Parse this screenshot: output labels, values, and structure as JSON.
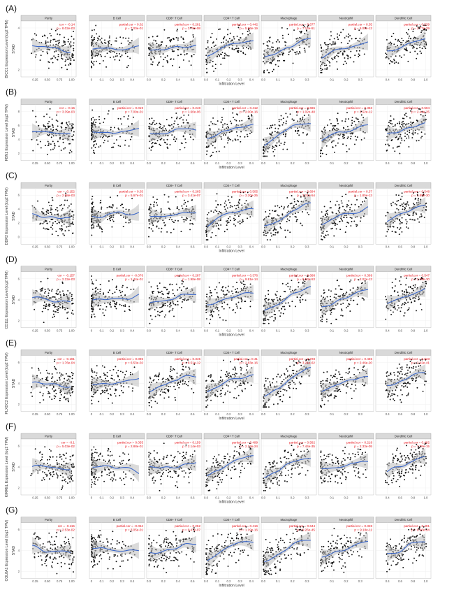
{
  "figure": {
    "x_axis_label": "Infiltration Level",
    "y_side_label": "STAD"
  },
  "chart_data": {
    "type": "scatter",
    "rows": [
      {
        "letter": "(A)",
        "gene": "BICC1",
        "ylabel": "BICC1 Expression Level (log2 TPM)",
        "yticks": [
          "2",
          "4"
        ],
        "cells": [
          {
            "name": "Purity",
            "cor_label": "cor = -0.14",
            "p_label": "p = 8.02e-03",
            "cor": -0.14
          },
          {
            "name": "B Cell",
            "cor_label": "partial.cor = 0.02",
            "p_label": "p = 7.00e-01",
            "cor": 0.02
          },
          {
            "name": "CD8+ T Cell",
            "cor_label": "partial.cor = 0.281",
            "p_label": "p = 3.79e-08",
            "cor": 0.281
          },
          {
            "name": "CD4+ T Cell",
            "cor_label": "partial.cor = 0.442",
            "p_label": "p = 5.86e-19",
            "cor": 0.442
          },
          {
            "name": "Macrophage",
            "cor_label": "partial.cor = 0.677",
            "p_label": "p = 7.14e-51",
            "cor": 0.677
          },
          {
            "name": "Neutrophil",
            "cor_label": "partial.cor = 0.35",
            "p_label": "p = 6.05e-12",
            "cor": 0.35
          },
          {
            "name": "Dendritic Cell",
            "cor_label": "partial.cor = 0.539",
            "p_label": "p = 2.77e-29",
            "cor": 0.539
          }
        ]
      },
      {
        "letter": "(B)",
        "gene": "FBN1",
        "ylabel": "FBN1 Expression Level (log2 TPM)",
        "yticks": [
          "2",
          "4",
          "6",
          "8"
        ],
        "cells": [
          {
            "name": "Purity",
            "cor_label": "cor = -0.15",
            "p_label": "p = 3.39e-03",
            "cor": -0.15
          },
          {
            "name": "B Cell",
            "cor_label": "partial.cor = 0.019",
            "p_label": "p = 7.09e-01",
            "cor": 0.019
          },
          {
            "name": "CD8+ T Cell",
            "cor_label": "partial.cor = 0.248",
            "p_label": "p = 1.60e-06",
            "cor": 0.248
          },
          {
            "name": "CD4+ T Cell",
            "cor_label": "partial.cor = 0.412",
            "p_label": "p = 2.00e-16",
            "cor": 0.412
          },
          {
            "name": "Macrophage",
            "cor_label": "partial.cor = 0.665",
            "p_label": "p = 1.02e-48",
            "cor": 0.665
          },
          {
            "name": "Neutrophil",
            "cor_label": "partial.cor = 0.353",
            "p_label": "p = 2.52e-12",
            "cor": 0.353
          },
          {
            "name": "Dendritic Cell",
            "cor_label": "partial.cor = 0.504",
            "p_label": "p = 2.44e-25",
            "cor": 0.504
          }
        ]
      },
      {
        "letter": "(C)",
        "gene": "DDR2",
        "ylabel": "DDR2 Expression Level (log2 TPM)",
        "yticks": [
          "0",
          "2",
          "4",
          "6"
        ],
        "cells": [
          {
            "name": "Purity",
            "cor_label": "cor = -0.152",
            "p_label": "p = 2.98e-03",
            "cor": -0.152
          },
          {
            "name": "B Cell",
            "cor_label": "partial.cor = 0.03",
            "p_label": "p = 5.67e-01",
            "cor": 0.03
          },
          {
            "name": "CD8+ T Cell",
            "cor_label": "partial.cor = 0.265",
            "p_label": "p = 3.41e-07",
            "cor": 0.265
          },
          {
            "name": "CD4+ T Cell",
            "cor_label": "partial.cor = 0.505",
            "p_label": "p = 3.20e-25",
            "cor": 0.505
          },
          {
            "name": "Macrophage",
            "cor_label": "partial.cor = 0.694",
            "p_label": "p = 2.21e-54",
            "cor": 0.694
          },
          {
            "name": "Neutrophil",
            "cor_label": "partial.cor = 0.37",
            "p_label": "p = 1.85e-13",
            "cor": 0.37
          },
          {
            "name": "Dendritic Cell",
            "cor_label": "partial.cor = 0.548",
            "p_label": "p = 1.88e-30",
            "cor": 0.548
          }
        ]
      },
      {
        "letter": "(D)",
        "gene": "CD111",
        "ylabel": "CD111 Expression Level (log2 TPM)",
        "yticks": [
          "2",
          "4",
          "6"
        ],
        "cells": [
          {
            "name": "Purity",
            "cor_label": "cor = -0.157",
            "p_label": "p = 2.22e-03",
            "cor": -0.157
          },
          {
            "name": "B Cell",
            "cor_label": "partial.cor = -0.076",
            "p_label": "p = 1.44e-01",
            "cor": -0.076
          },
          {
            "name": "CD8+ T Cell",
            "cor_label": "partial.cor = 0.287",
            "p_label": "p = 1.98e-08",
            "cor": 0.287
          },
          {
            "name": "CD4+ T Cell",
            "cor_label": "partial.cor = 0.376",
            "p_label": "p = 9.81e-14",
            "cor": 0.376
          },
          {
            "name": "Macrophage",
            "cor_label": "partial.cor = 0.688",
            "p_label": "p = 8.53e-53",
            "cor": 0.688
          },
          {
            "name": "Neutrophil",
            "cor_label": "partial.cor = 0.369",
            "p_label": "p = 2.02e-13",
            "cor": 0.369
          },
          {
            "name": "Dendritic Cell",
            "cor_label": "partial.cor = 0.547",
            "p_label": "p = 2.76e-30",
            "cor": 0.547
          }
        ]
      },
      {
        "letter": "(E)",
        "gene": "PLXDC2",
        "ylabel": "PLXDC2 Expression Level (log2 TPM)",
        "yticks": [
          "2",
          "4",
          "6"
        ],
        "cells": [
          {
            "name": "Purity",
            "cor_label": "cor = -0.191",
            "p_label": "p = 1.76e-04",
            "cor": -0.191
          },
          {
            "name": "B Cell",
            "cor_label": "partial.cor = 0.096",
            "p_label": "p = 6.53e-02",
            "cor": 0.096
          },
          {
            "name": "CD8+ T Cell",
            "cor_label": "partial.cor = 0.345",
            "p_label": "p = 8.51e-12",
            "cor": 0.345
          },
          {
            "name": "CD4+ T Cell",
            "cor_label": "partial.cor = 0.41",
            "p_label": "p = 2.83e-16",
            "cor": 0.41
          },
          {
            "name": "Macrophage",
            "cor_label": "partial.cor = 0.728",
            "p_label": "p = 3.21e-62",
            "cor": 0.728
          },
          {
            "name": "Neutrophil",
            "cor_label": "partial.cor = 0.455",
            "p_label": "p = 2.46e-20",
            "cor": 0.455
          },
          {
            "name": "Dendritic Cell",
            "cor_label": "partial.cor = 0.623",
            "p_label": "p = 2.92e-41",
            "cor": 0.623
          }
        ]
      },
      {
        "letter": "(F)",
        "gene": "KIRREL",
        "ylabel": "KIRREL Expression Level (log2 TPM)",
        "yticks": [
          "2",
          "4",
          "6"
        ],
        "cells": [
          {
            "name": "Purity",
            "cor_label": "cor = -0.1",
            "p_label": "p = 5.03e-02",
            "cor": -0.1
          },
          {
            "name": "B Cell",
            "cor_label": "partial.cor = 0.055",
            "p_label": "p = 2.88e-01",
            "cor": 0.055
          },
          {
            "name": "CD8+ T Cell",
            "cor_label": "partial.cor = 0.159",
            "p_label": "p = 2.14e-03",
            "cor": 0.159
          },
          {
            "name": "CD4+ T Cell",
            "cor_label": "partial.cor = 0.499",
            "p_label": "p = 2.13e-24",
            "cor": 0.499
          },
          {
            "name": "Macrophage",
            "cor_label": "partial.cor = 0.582",
            "p_label": "p = 7.44e-35",
            "cor": 0.582
          },
          {
            "name": "Neutrophil",
            "cor_label": "partial.cor = 0.218",
            "p_label": "p = 2.33e-05",
            "cor": 0.218
          },
          {
            "name": "Dendritic Cell",
            "cor_label": "partial.cor = 0.492",
            "p_label": "p = 7.78e-15",
            "cor": 0.492
          }
        ]
      },
      {
        "letter": "(G)",
        "gene": "COL8A1",
        "ylabel": "COL8A1 Expression Level (log2 TPM)",
        "yticks": [
          "2",
          "4",
          "6"
        ],
        "cells": [
          {
            "name": "Purity",
            "cor_label": "cor = -0.115",
            "p_label": "p = 2.53e-02",
            "cor": -0.115
          },
          {
            "name": "B Cell",
            "cor_label": "partial.cor = -0.054",
            "p_label": "p = 3.05e-01",
            "cor": -0.054
          },
          {
            "name": "CD8+ T Cell",
            "cor_label": "partial.cor = 0.252",
            "p_label": "p = 9.47e-07",
            "cor": 0.252
          },
          {
            "name": "CD4+ T Cell",
            "cor_label": "partial.cor = 0.416",
            "p_label": "p = 1.19e-16",
            "cor": 0.416
          },
          {
            "name": "Macrophage",
            "cor_label": "partial.cor = 0.644",
            "p_label": "p = 9.26e-45",
            "cor": 0.644
          },
          {
            "name": "Neutrophil",
            "cor_label": "partial.cor = 0.328",
            "p_label": "p = 9.18e-11",
            "cor": 0.328
          },
          {
            "name": "Dendritic Cell",
            "cor_label": "partial.cor = 0.491",
            "p_label": "p = 9.66e-24",
            "cor": 0.491
          }
        ]
      }
    ],
    "x_ticks": [
      [
        "0.25",
        "0.50",
        "0.75",
        "1.00"
      ],
      [
        "0",
        "0.1",
        "0.2",
        "0.3",
        "0.4"
      ],
      [
        "0.0",
        "0.2",
        "0.4",
        "0.6"
      ],
      [
        "0.0",
        "0.1",
        "0.2",
        "0.3",
        "0.4"
      ],
      [
        "0.0",
        "0.1",
        "0.2",
        "0.3"
      ],
      [
        "0.1",
        "0.2",
        "0.3"
      ],
      [
        "0.4",
        "0.6",
        "0.8",
        "1.0"
      ]
    ],
    "x_ranges": [
      [
        0.0,
        1.05
      ],
      [
        0.0,
        0.5
      ],
      [
        0.0,
        0.7
      ],
      [
        0.0,
        0.45
      ],
      [
        0.0,
        0.35
      ],
      [
        0.02,
        0.38
      ],
      [
        0.25,
        1.05
      ]
    ],
    "colors": {
      "points": "#141414",
      "fit": "#3a66c8",
      "band": "#bdbdbd",
      "stats": "#e8141b",
      "strip": "#d9d9d9"
    }
  }
}
